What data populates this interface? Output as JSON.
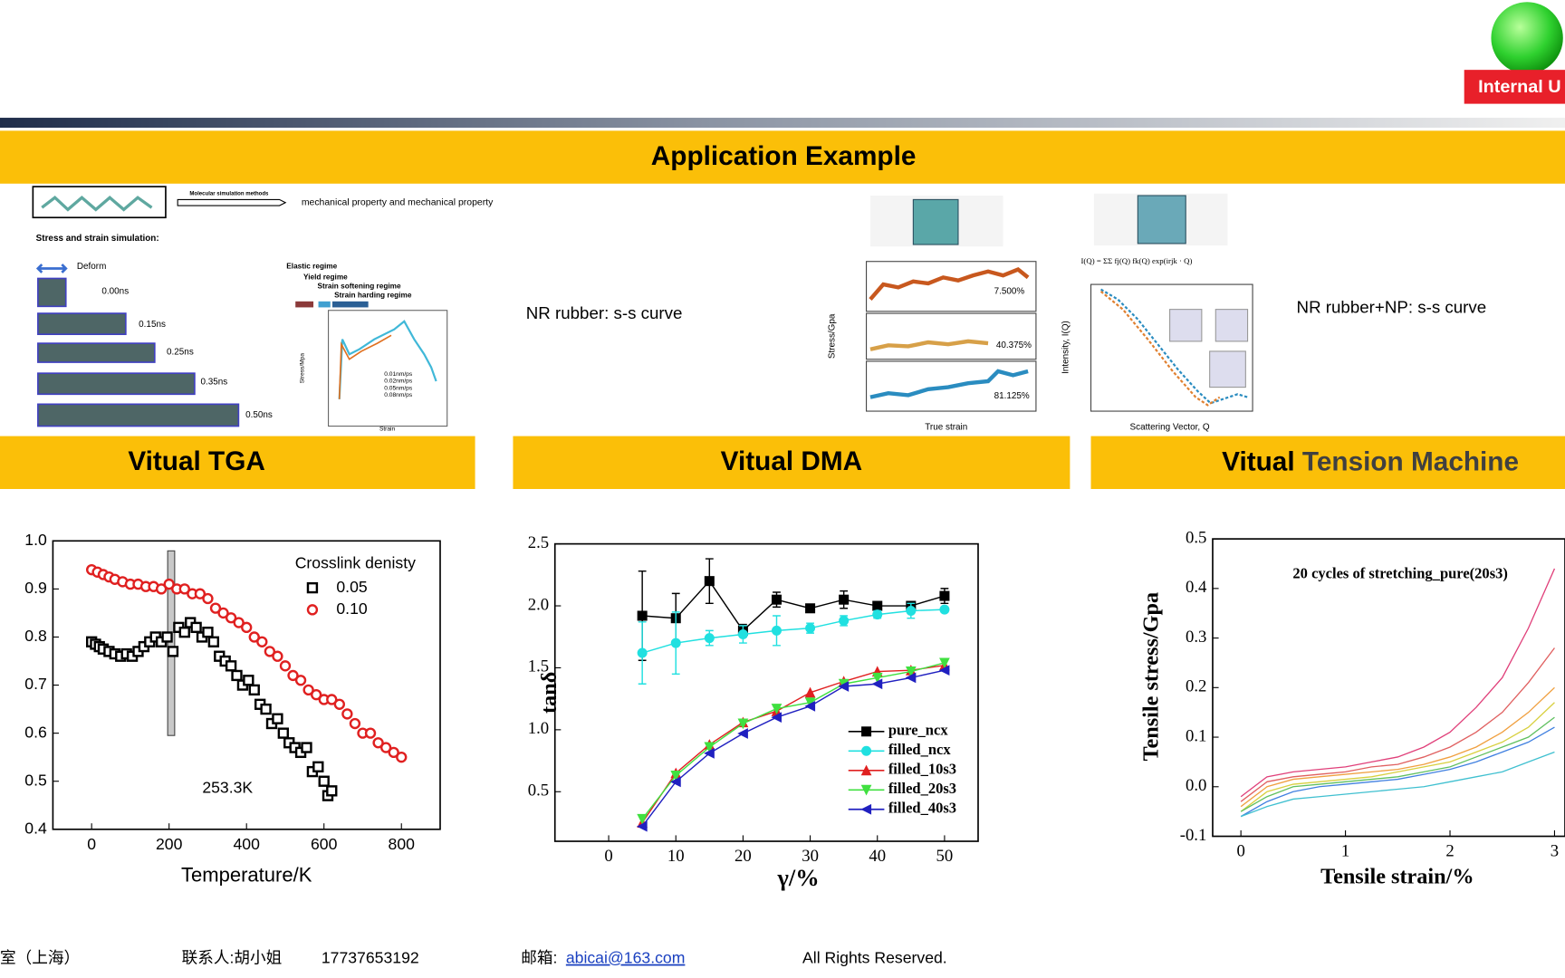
{
  "header": {
    "badge": "Internal U",
    "title": "Application Example"
  },
  "top_panels": {
    "method_label": "Molecular simulation methods",
    "method_result": "mechanical property and mechanical property",
    "stress_strain_title": "Stress and strain simulation:",
    "deform": "Deform",
    "times": [
      "0.00ns",
      "0.15ns",
      "0.25ns",
      "0.35ns",
      "0.50ns"
    ],
    "regimes": [
      "Elastic regime",
      "Yield regime",
      "Strain softening regime",
      "Strain harding regime"
    ],
    "mini_legend": [
      "0.01nm/ps",
      "0.02nm/ps",
      "0.05nm/ps",
      "0.08nm/ps"
    ],
    "mini_xlabel": "Strain",
    "mini_ylabel": "Stress/Mpa",
    "nr_caption": "NR rubber:  s-s curve",
    "dma_strains": [
      "7.500%",
      "40.375%",
      "81.125%"
    ],
    "dma_xlabel": "True strain",
    "dma_ylabel": "Stress/Gpa",
    "formula": "I(Q) = ΣΣ fj(Q) fk(Q) exp(irjk · Q)",
    "saxs_ylabel": "Intensity, I(Q)",
    "saxs_xlabel": "Scattering Vector, Q",
    "np_caption": "NR rubber+NP:  s-s curve"
  },
  "sections": [
    "Vitual TGA",
    "Vitual DMA"
  ],
  "tension_section": [
    "Vitual",
    "Tension Machine"
  ],
  "chart_data": [
    {
      "type": "scatter",
      "xlabel": "Temperature/K",
      "legend_title": "Crosslink denisty",
      "annotation": "253.3K",
      "xlim": [
        -100,
        900
      ],
      "ylim": [
        0.4,
        1.0
      ],
      "xticks": [
        0,
        200,
        400,
        600,
        800
      ],
      "yticks": [
        0.4,
        0.5,
        0.6,
        0.7,
        0.8,
        0.9,
        {
          "value": 1,
          "label": "1.0"
        }
      ],
      "series": [
        {
          "name": "0.05",
          "color": "#000000",
          "marker": "square",
          "x": [
            0,
            10,
            20,
            30,
            45,
            60,
            75,
            90,
            105,
            120,
            135,
            150,
            165,
            180,
            195,
            210,
            225,
            240,
            255,
            270,
            285,
            300,
            315,
            330,
            345,
            360,
            375,
            390,
            405,
            420,
            435,
            450,
            465,
            480,
            495,
            510,
            525,
            540,
            555,
            570,
            585,
            600,
            610,
            620
          ],
          "values": [
            0.79,
            0.785,
            0.78,
            0.775,
            0.77,
            0.765,
            0.76,
            0.765,
            0.76,
            0.77,
            0.78,
            0.79,
            0.8,
            0.79,
            0.8,
            0.77,
            0.82,
            0.81,
            0.83,
            0.82,
            0.8,
            0.81,
            0.79,
            0.76,
            0.75,
            0.74,
            0.72,
            0.7,
            0.71,
            0.69,
            0.66,
            0.65,
            0.62,
            0.63,
            0.6,
            0.58,
            0.57,
            0.56,
            0.57,
            0.52,
            0.53,
            0.5,
            0.47,
            0.48
          ]
        },
        {
          "name": "0.10",
          "color": "#e02020",
          "marker": "circle",
          "x": [
            0,
            15,
            30,
            45,
            60,
            80,
            100,
            120,
            140,
            160,
            180,
            200,
            220,
            240,
            260,
            280,
            300,
            320,
            340,
            360,
            380,
            400,
            420,
            440,
            460,
            480,
            500,
            520,
            540,
            560,
            580,
            600,
            620,
            640,
            660,
            680,
            700,
            720,
            740,
            760,
            780,
            800
          ],
          "values": [
            0.94,
            0.935,
            0.93,
            0.925,
            0.92,
            0.915,
            0.91,
            0.91,
            0.905,
            0.905,
            0.9,
            0.91,
            0.9,
            0.9,
            0.89,
            0.89,
            0.88,
            0.86,
            0.85,
            0.84,
            0.83,
            0.82,
            0.8,
            0.79,
            0.77,
            0.76,
            0.74,
            0.72,
            0.71,
            0.69,
            0.68,
            0.67,
            0.67,
            0.66,
            0.64,
            0.62,
            0.6,
            0.6,
            0.58,
            0.57,
            0.56,
            0.55
          ]
        }
      ]
    },
    {
      "type": "line",
      "xlabel": "γ/%",
      "ylabel": "tanδ",
      "xlim": [
        -8,
        55
      ],
      "ylim": [
        0.1,
        2.5
      ],
      "xticks": [
        0,
        10,
        20,
        30,
        40,
        50
      ],
      "yticks": [
        0.5,
        {
          "value": 1,
          "label": "1.0"
        },
        1.5,
        {
          "value": 2,
          "label": "2.0"
        },
        2.5
      ],
      "x": [
        5,
        10,
        15,
        20,
        25,
        30,
        35,
        40,
        45,
        50
      ],
      "series": [
        {
          "name": "pure_ncx",
          "color": "#000000",
          "marker": "square",
          "values": [
            1.92,
            1.9,
            2.2,
            1.8,
            2.05,
            1.98,
            2.05,
            2.0,
            2.0,
            2.08
          ],
          "errors": [
            0.36,
            0.2,
            0.18,
            0.05,
            0.06,
            0.03,
            0.07,
            0.02,
            0.02,
            0.06
          ]
        },
        {
          "name": "filled_ncx",
          "color": "#20e0e0",
          "marker": "circle",
          "values": [
            1.62,
            1.7,
            1.74,
            1.77,
            1.8,
            1.82,
            1.88,
            1.93,
            1.96,
            1.97
          ],
          "errors": [
            0.25,
            0.25,
            0.06,
            0.07,
            0.12,
            0.04,
            0.04,
            0.03,
            0.06,
            0.02
          ]
        },
        {
          "name": "filled_10s3",
          "color": "#e02020",
          "marker": "triangle-up",
          "values": [
            0.25,
            0.65,
            0.88,
            1.06,
            1.15,
            1.3,
            1.39,
            1.47,
            1.48,
            1.52
          ]
        },
        {
          "name": "filled_20s3",
          "color": "#40e040",
          "marker": "triangle-down",
          "values": [
            0.28,
            0.63,
            0.86,
            1.05,
            1.17,
            1.22,
            1.37,
            1.42,
            1.47,
            1.54
          ]
        },
        {
          "name": "filled_40s3",
          "color": "#2020c0",
          "marker": "triangle-left",
          "values": [
            0.22,
            0.58,
            0.81,
            0.97,
            1.1,
            1.19,
            1.35,
            1.37,
            1.42,
            1.48
          ]
        }
      ]
    },
    {
      "type": "line",
      "title": "20 cycles of stretching_pure(20s3)",
      "xlabel": "Tensile strain/%",
      "ylabel": "Tensile stress/Gpa",
      "xlim": [
        -0.27,
        3.1
      ],
      "ylim": [
        -0.1,
        0.5
      ],
      "xticks": [
        0,
        1,
        2,
        3
      ],
      "yticks": [
        -0.1,
        {
          "value": 0,
          "label": "0.0"
        },
        0.1,
        0.2,
        0.3,
        0.4,
        0.5
      ],
      "x": [
        0,
        0.25,
        0.5,
        0.75,
        1,
        1.25,
        1.5,
        1.75,
        2,
        2.25,
        2.5,
        2.75,
        3
      ],
      "series": [
        {
          "color": "#e0407a",
          "values": [
            -0.02,
            0.02,
            0.03,
            0.035,
            0.04,
            0.05,
            0.06,
            0.08,
            0.11,
            0.16,
            0.22,
            0.32,
            0.44
          ]
        },
        {
          "color": "#e06060",
          "values": [
            -0.03,
            0.01,
            0.02,
            0.025,
            0.03,
            0.04,
            0.045,
            0.06,
            0.08,
            0.11,
            0.15,
            0.21,
            0.28
          ]
        },
        {
          "color": "#f0a040",
          "values": [
            -0.04,
            0,
            0.015,
            0.02,
            0.025,
            0.03,
            0.035,
            0.045,
            0.06,
            0.08,
            0.11,
            0.15,
            0.2
          ]
        },
        {
          "color": "#d8d040",
          "values": [
            -0.05,
            -0.01,
            0.005,
            0.01,
            0.015,
            0.02,
            0.03,
            0.04,
            0.05,
            0.07,
            0.09,
            0.12,
            0.17
          ]
        },
        {
          "color": "#60c060",
          "values": [
            -0.05,
            -0.02,
            0,
            0.005,
            0.01,
            0.015,
            0.02,
            0.03,
            0.04,
            0.06,
            0.08,
            0.1,
            0.14
          ]
        },
        {
          "color": "#4080e0",
          "values": [
            -0.06,
            -0.03,
            -0.01,
            0,
            0.005,
            0.01,
            0.015,
            0.025,
            0.035,
            0.05,
            0.07,
            0.09,
            0.12
          ]
        },
        {
          "color": "#40c0d0",
          "values": [
            -0.06,
            -0.04,
            -0.025,
            -0.02,
            -0.015,
            -0.01,
            -0.005,
            0,
            0.01,
            0.02,
            0.03,
            0.05,
            0.07
          ]
        }
      ]
    }
  ],
  "footer": {
    "org": "室（上海）",
    "contact": "联系人:胡小姐",
    "phone": "17737653192",
    "mail_label": "邮箱:",
    "mail": "abicai@163.com",
    "rights": "All Rights Reserved."
  }
}
